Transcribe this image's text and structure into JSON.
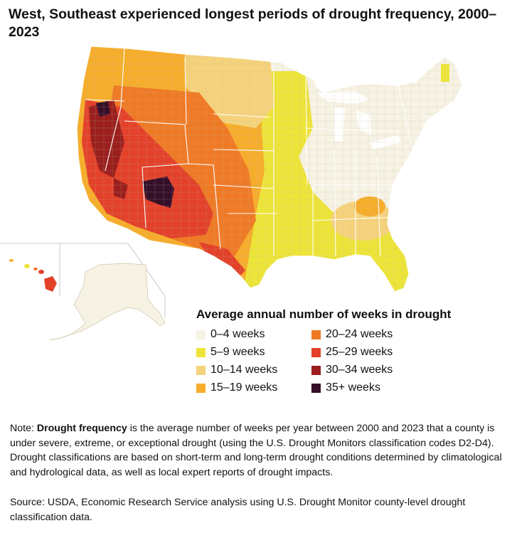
{
  "title": "West, Southeast experienced longest periods of drought frequency, 2000–2023",
  "legend": {
    "title": "Average annual number of weeks in drought",
    "categories": [
      {
        "label": "0–4 weeks",
        "color": "#f6f2e4"
      },
      {
        "label": "5–9 weeks",
        "color": "#ede43a"
      },
      {
        "label": "10–14 weeks",
        "color": "#f5d37c"
      },
      {
        "label": "15–19 weeks",
        "color": "#f6ad2c"
      },
      {
        "label": "20–24 weeks",
        "color": "#ef7a26"
      },
      {
        "label": "25–29 weeks",
        "color": "#e3412a"
      },
      {
        "label": "30–34 weeks",
        "color": "#9a1f1e"
      },
      {
        "label": "35+ weeks",
        "color": "#350f2a"
      }
    ]
  },
  "note": {
    "prefix": "Note: ",
    "term": "Drought frequency",
    "text": " is the average number of weeks per year between 2000 and 2023 that a county is under severe, extreme, or exceptional drought (using the U.S. Drought Monitors classification codes D2-D4). Drought classifications are based on short-term and long-term drought conditions determined by climatological and hydrological data, as well as local expert reports of drought impacts."
  },
  "source": "Source: USDA, Economic Research Service analysis using U.S. Drought Monitor county-level drought classification data."
}
